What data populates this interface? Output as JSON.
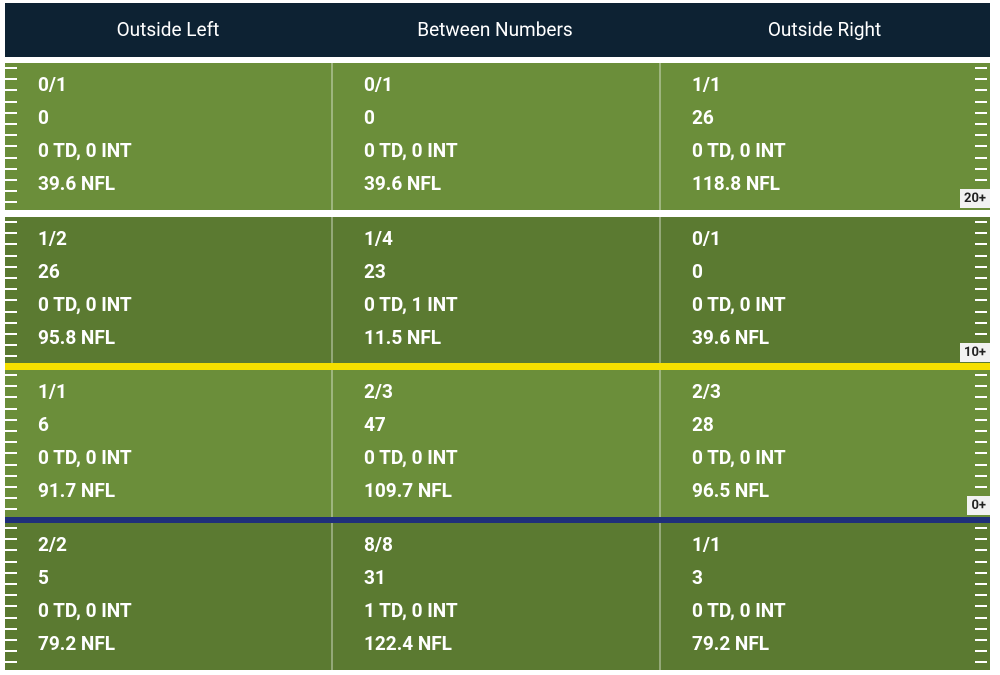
{
  "header": {
    "columns": [
      "Outside Left",
      "Between Numbers",
      "Outside Right"
    ]
  },
  "rows": [
    {
      "zone": "20+",
      "cells": [
        [
          "0/1",
          "0",
          "0 TD, 0 INT",
          "39.6 NFL"
        ],
        [
          "0/1",
          "0",
          "0 TD, 0 INT",
          "39.6 NFL"
        ],
        [
          "1/1",
          "26",
          "0 TD, 0 INT",
          "118.8 NFL"
        ]
      ]
    },
    {
      "zone": "10+",
      "cells": [
        [
          "1/2",
          "26",
          "0 TD, 0 INT",
          "95.8 NFL"
        ],
        [
          "1/4",
          "23",
          "0 TD, 1 INT",
          "11.5 NFL"
        ],
        [
          "0/1",
          "0",
          "0 TD, 0 INT",
          "39.6 NFL"
        ]
      ]
    },
    {
      "zone": "0+",
      "cells": [
        [
          "1/1",
          "6",
          "0 TD, 0 INT",
          "91.7 NFL"
        ],
        [
          "2/3",
          "47",
          "0 TD, 0 INT",
          "109.7 NFL"
        ],
        [
          "2/3",
          "28",
          "0 TD, 0 INT",
          "96.5 NFL"
        ]
      ]
    },
    {
      "cells": [
        [
          "2/2",
          "5",
          "0 TD, 0 INT",
          "79.2 NFL"
        ],
        [
          "8/8",
          "31",
          "1 TD, 0 INT",
          "122.4 NFL"
        ],
        [
          "1/1",
          "3",
          "0 TD, 0 INT",
          "79.2 NFL"
        ]
      ]
    }
  ]
}
